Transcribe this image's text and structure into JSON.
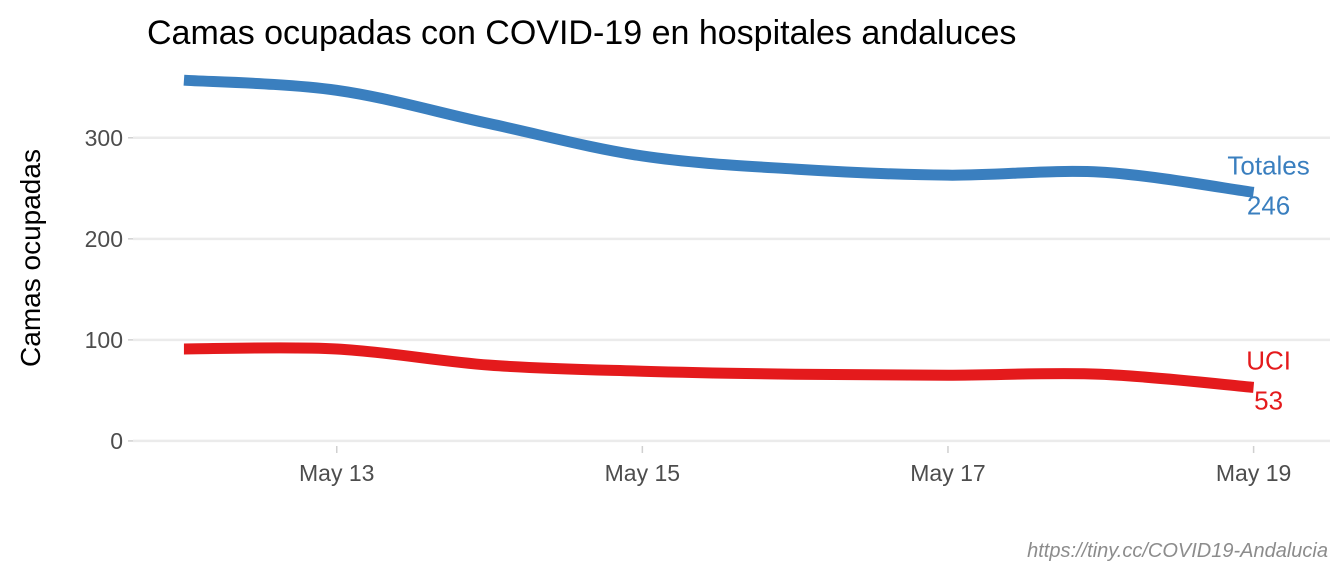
{
  "chart_data": {
    "type": "line",
    "title": "Camas ocupadas con COVID-19 en hospitales andaluces",
    "xlabel": "",
    "ylabel": "Camas ocupadas",
    "caption": "https://tiny.cc/COVID19-Andalucia",
    "x": [
      "2020-05-12",
      "2020-05-13",
      "2020-05-14",
      "2020-05-15",
      "2020-05-16",
      "2020-05-17",
      "2020-05-18",
      "2020-05-19"
    ],
    "x_ticks": [
      {
        "date": "2020-05-13",
        "label": "May 13"
      },
      {
        "date": "2020-05-15",
        "label": "May 15"
      },
      {
        "date": "2020-05-17",
        "label": "May 17"
      },
      {
        "date": "2020-05-19",
        "label": "May 19"
      }
    ],
    "y_ticks": [
      0,
      100,
      200,
      300
    ],
    "xlim": [
      "2020-05-11T16:00",
      "2020-05-19T12:00"
    ],
    "ylim": [
      -7,
      375
    ],
    "grid": true,
    "legend": "none",
    "series": [
      {
        "name": "Totales",
        "color": "#3a7fbf",
        "values": [
          357,
          347,
          314,
          282,
          269,
          263,
          266,
          246
        ],
        "end_label": "246"
      },
      {
        "name": "UCI",
        "color": "#e41a1c",
        "values": [
          91,
          91,
          75,
          69,
          66,
          65,
          66,
          53
        ],
        "end_label": "53"
      }
    ]
  }
}
